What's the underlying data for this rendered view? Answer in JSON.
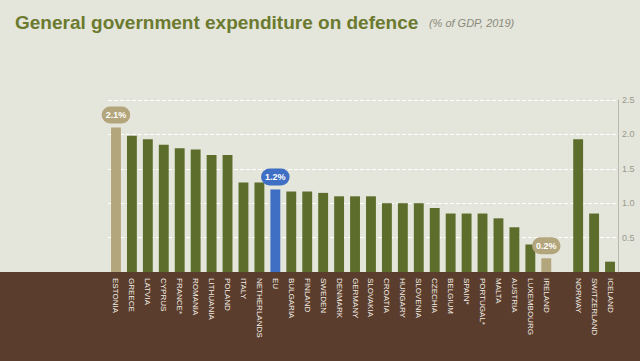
{
  "chart_data": {
    "type": "bar",
    "title": "General government expenditure on defence",
    "subtitle": "(% of GDP, 2019)",
    "categories": [
      "ESTONIA",
      "GREECE",
      "LATVIA",
      "CYPRUS",
      "FRANCE*",
      "ROMANIA",
      "LITHUANIA",
      "POLAND",
      "ITALY",
      "NETHERLANDS",
      "EU",
      "BULGARIA",
      "FINLAND",
      "SWEDEN",
      "DENMARK",
      "GERMANY",
      "SLOVAKIA",
      "CROATIA",
      "HUNGARY",
      "SLOVENIA",
      "CZECHIA",
      "BELGIUM",
      "SPAIN*",
      "PORTUGAL*",
      "MALTA",
      "AUSTRIA",
      "LUXEMBOURG",
      "IRELAND",
      null,
      "NORWAY",
      "SWITZERLAND",
      "ICELAND"
    ],
    "values": [
      2.1,
      1.98,
      1.93,
      1.85,
      1.8,
      1.78,
      1.7,
      1.7,
      1.3,
      1.3,
      1.2,
      1.17,
      1.17,
      1.15,
      1.1,
      1.1,
      1.1,
      1.0,
      1.0,
      1.0,
      0.93,
      0.85,
      0.85,
      0.85,
      0.78,
      0.65,
      0.4,
      0.2,
      null,
      1.93,
      0.85,
      0.15
    ],
    "value_labels": [
      "2.1%",
      null,
      null,
      null,
      null,
      null,
      null,
      null,
      null,
      null,
      "1.2%",
      null,
      null,
      null,
      null,
      null,
      null,
      null,
      null,
      null,
      null,
      null,
      null,
      null,
      null,
      null,
      null,
      "0.2%",
      null,
      null,
      null,
      null
    ],
    "data_labels": true,
    "colors": [
      "#b3a57c",
      "#5d6d2c",
      "#5d6d2c",
      "#5d6d2c",
      "#5d6d2c",
      "#5d6d2c",
      "#5d6d2c",
      "#5d6d2c",
      "#5d6d2c",
      "#5d6d2c",
      "#3f6fc4",
      "#5d6d2c",
      "#5d6d2c",
      "#5d6d2c",
      "#5d6d2c",
      "#5d6d2c",
      "#5d6d2c",
      "#5d6d2c",
      "#5d6d2c",
      "#5d6d2c",
      "#5d6d2c",
      "#5d6d2c",
      "#5d6d2c",
      "#5d6d2c",
      "#5d6d2c",
      "#5d6d2c",
      "#5d6d2c",
      "#b3a57c",
      "#5d6d2c",
      "#5d6d2c",
      "#5d6d2c",
      "#5d6d2c"
    ],
    "ylim": [
      0,
      2.5
    ],
    "yticks": [
      0.5,
      {
        "value": 1,
        "label": "1.0"
      },
      1.5,
      {
        "value": 2,
        "label": "2.0"
      },
      2.5
    ],
    "grid": true
  }
}
